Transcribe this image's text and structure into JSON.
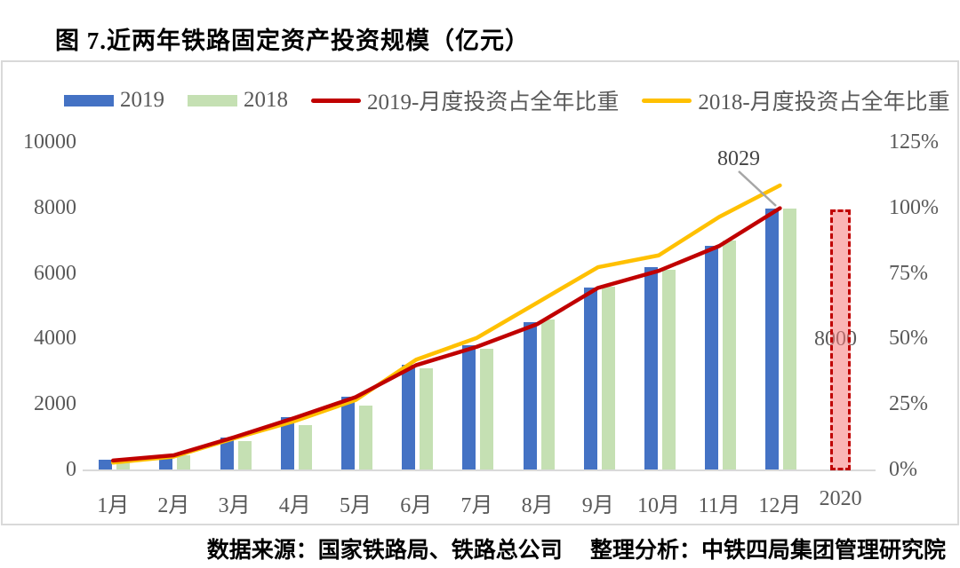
{
  "title": "图 7.近两年铁路固定资产投资规模（亿元）",
  "source_note": "数据来源：国家铁路局、铁路总公司　 整理分析：中铁四局集团管理研究院",
  "colors": {
    "bar_2019": "#4472c4",
    "bar_2018": "#c5e0b3",
    "line_2019": "#c00000",
    "line_2018": "#ffc000",
    "bar_2020_fill": "#f9b0b0",
    "bar_2020_border": "#c00000",
    "axis": "#d9d9d9",
    "tick_text": "#595959",
    "callout": "#a6a6a6"
  },
  "legend": [
    {
      "label": "2019",
      "type": "bar",
      "color": "#4472c4"
    },
    {
      "label": "2018",
      "type": "bar",
      "color": "#c5e0b3"
    },
    {
      "label": "2019-月度投资占全年比重",
      "type": "line",
      "color": "#c00000"
    },
    {
      "label": "2018-月度投资占全年比重",
      "type": "line",
      "color": "#ffc000"
    }
  ],
  "chart_data": {
    "type": "bar+line combo",
    "categories": [
      "1月",
      "2月",
      "3月",
      "4月",
      "5月",
      "6月",
      "7月",
      "8月",
      "9月",
      "10月",
      "11月",
      "12月",
      "2020"
    ],
    "series": [
      {
        "name": "2019",
        "type": "bar",
        "axis": "left",
        "color": "#4472c4",
        "values": [
          350,
          470,
          1030,
          1650,
          2270,
          3240,
          3860,
          4540,
          5600,
          6240,
          6890,
          8029
        ]
      },
      {
        "name": "2018",
        "type": "bar",
        "axis": "left",
        "color": "#c5e0b3",
        "values": [
          270,
          490,
          930,
          1410,
          2000,
          3150,
          3750,
          4630,
          5630,
          6160,
          7050,
          8028
        ]
      },
      {
        "name": "2019-月度投资占全年比重",
        "type": "line",
        "axis": "right",
        "color": "#c00000",
        "values": [
          4.1,
          6.1,
          13.0,
          20.4,
          28.3,
          40.5,
          47.5,
          56.2,
          70.0,
          76.5,
          86.0,
          100.4
        ]
      },
      {
        "name": "2018-月度投资占全年比重",
        "type": "line",
        "axis": "right",
        "color": "#ffc000",
        "values": [
          3.3,
          5.6,
          12.6,
          19.2,
          27.2,
          42.6,
          50.9,
          64.4,
          77.9,
          82.4,
          97.1,
          109.1
        ]
      }
    ],
    "projection": {
      "category": "2020",
      "value": 8000,
      "label": "8000",
      "style": "dashed-red"
    },
    "annotation": {
      "text": "8029",
      "target": "2019 12月 bar top"
    },
    "left_axis": {
      "ticks": [
        "0",
        "2000",
        "4000",
        "6000",
        "8000",
        "10000"
      ],
      "range": [
        0,
        10000
      ]
    },
    "right_axis": {
      "ticks": [
        "0%",
        "25%",
        "50%",
        "75%",
        "100%",
        "125%"
      ],
      "range_pct": [
        0,
        125
      ]
    },
    "grid": "off",
    "legend_position": "top"
  }
}
